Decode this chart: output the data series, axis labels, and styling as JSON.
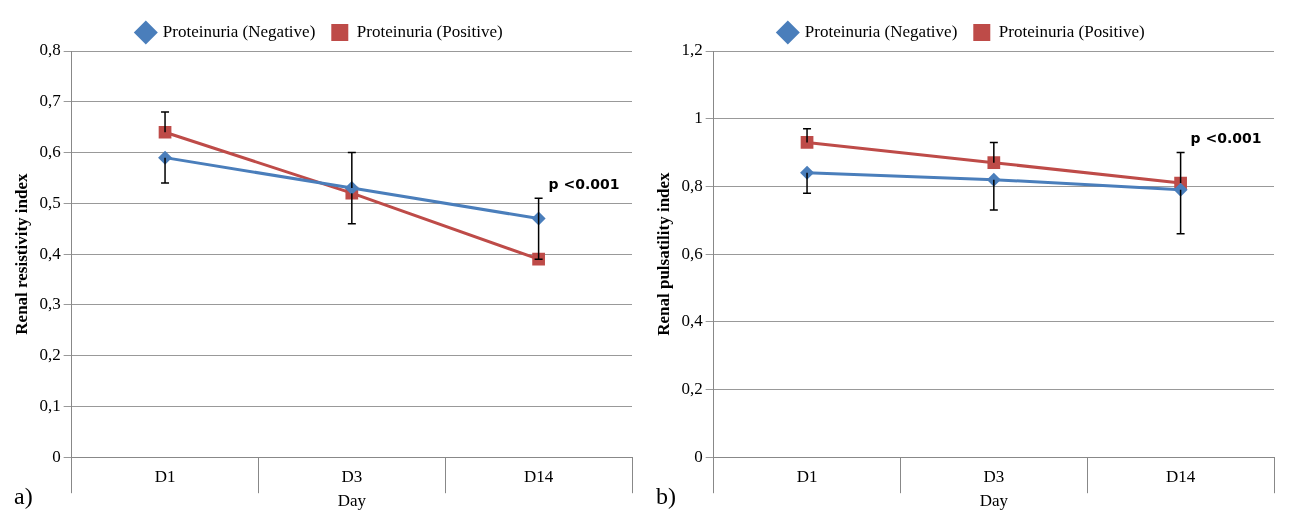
{
  "chart_data": [
    {
      "type": "line",
      "xlabel": "Day",
      "ylabel": "Renal resistivity index",
      "categories": [
        "D1",
        "D3",
        "D14"
      ],
      "ylim": [
        0,
        0.8
      ],
      "yticks": [
        {
          "value": 0,
          "label": "0"
        },
        {
          "value": 0.1,
          "label": "0,1"
        },
        {
          "value": 0.2,
          "label": "0,2"
        },
        {
          "value": 0.3,
          "label": "0,3"
        },
        {
          "value": 0.4,
          "label": "0,4"
        },
        {
          "value": 0.5,
          "label": "0,5"
        },
        {
          "value": 0.6,
          "label": "0,6"
        },
        {
          "value": 0.7,
          "label": "0,7"
        },
        {
          "value": 0.8,
          "label": "0,8"
        }
      ],
      "grid": "y",
      "legend": "top",
      "annotations": [
        "p <0.001",
        "a)"
      ],
      "series": [
        {
          "name": "Proteinuria (Negative)",
          "color": "#4a7ebb",
          "marker": "diamond",
          "values": [
            0.59,
            0.53,
            0.47
          ],
          "errors": [
            [
              0.54,
              0.59
            ],
            [
              0.53,
              0.6
            ],
            [
              0.39,
              0.51
            ]
          ]
        },
        {
          "name": "Proteinuria (Positive)",
          "color": "#be4b48",
          "marker": "square",
          "values": [
            0.64,
            0.52,
            0.39
          ],
          "errors": [
            [
              0.64,
              0.68
            ],
            [
              0.46,
              0.52
            ],
            null
          ]
        }
      ]
    },
    {
      "type": "line",
      "xlabel": "Day",
      "ylabel": "Renal pulsatility index",
      "categories": [
        "D1",
        "D3",
        "D14"
      ],
      "ylim": [
        0,
        1.2
      ],
      "yticks": [
        {
          "value": 0,
          "label": "0"
        },
        {
          "value": 0.2,
          "label": "0,2"
        },
        {
          "value": 0.4,
          "label": "0,4"
        },
        {
          "value": 0.6,
          "label": "0,6"
        },
        {
          "value": 0.8,
          "label": "0,8"
        },
        {
          "value": 1,
          "label": "1"
        },
        {
          "value": 1.2,
          "label": "1,2"
        }
      ],
      "grid": "y",
      "legend": "top",
      "annotations": [
        "p <0.001",
        "b)"
      ],
      "series": [
        {
          "name": "Proteinuria (Negative)",
          "color": "#4a7ebb",
          "marker": "diamond",
          "values": [
            0.84,
            0.82,
            0.79
          ],
          "errors": [
            [
              0.78,
              0.84
            ],
            [
              0.73,
              0.82
            ],
            [
              0.66,
              0.79
            ]
          ]
        },
        {
          "name": "Proteinuria (Positive)",
          "color": "#be4b48",
          "marker": "square",
          "values": [
            0.93,
            0.87,
            0.81
          ],
          "errors": [
            [
              0.93,
              0.97
            ],
            [
              0.87,
              0.93
            ],
            [
              0.81,
              0.9
            ]
          ]
        }
      ]
    }
  ]
}
